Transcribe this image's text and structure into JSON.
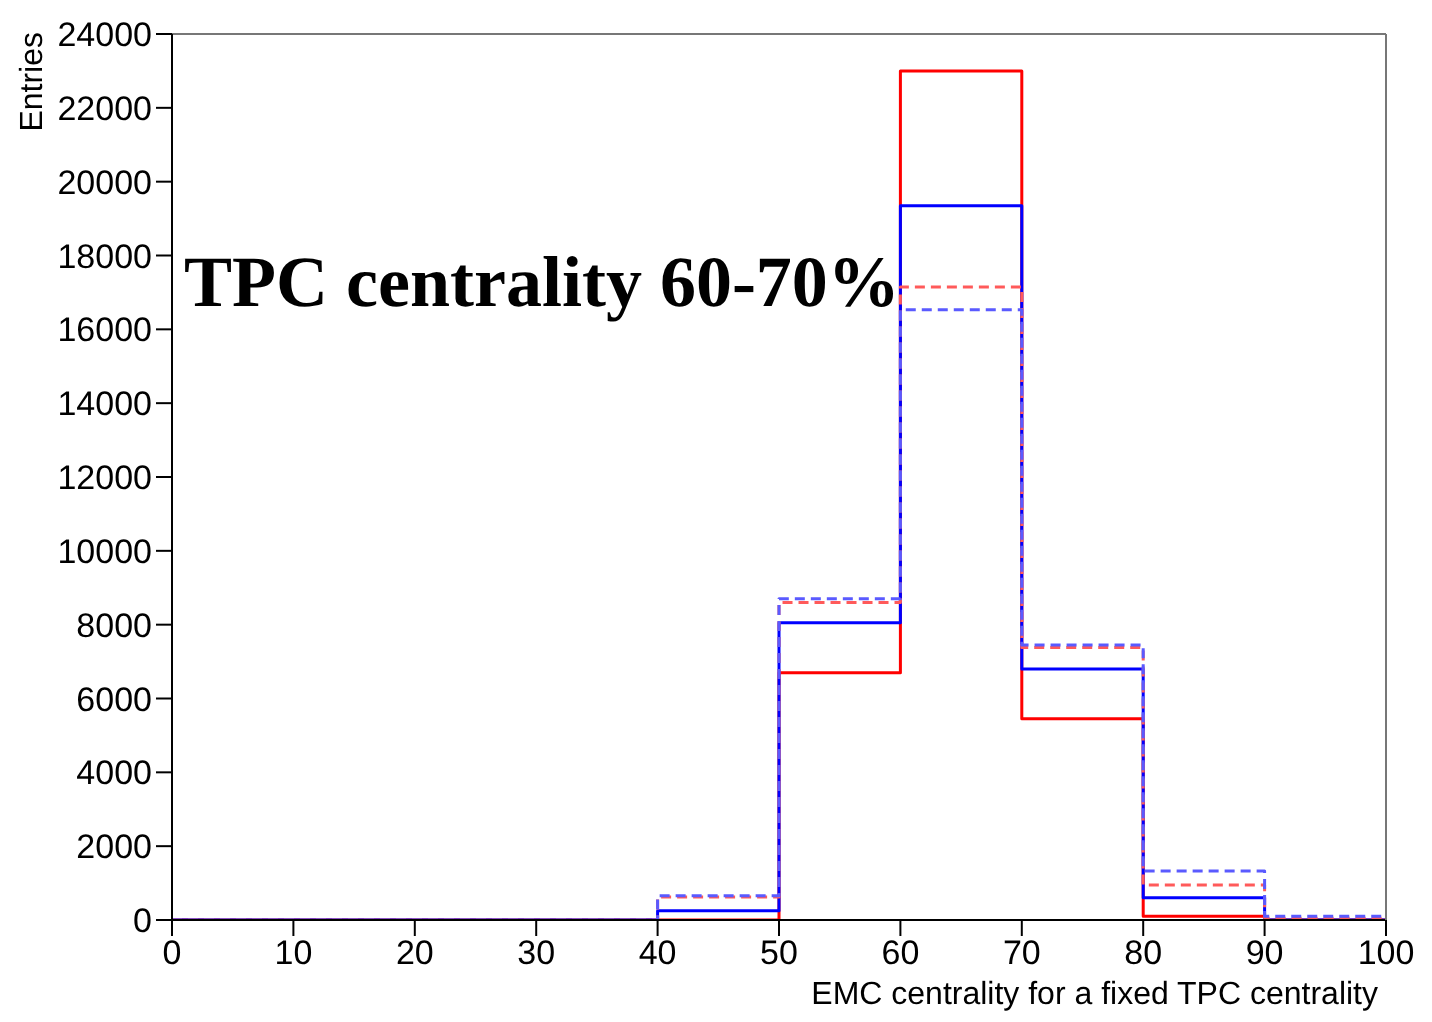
{
  "chart_data": {
    "type": "histogram",
    "xlabel": "EMC centrality for a fixed TPC centrality",
    "ylabel": "Entries",
    "annotations": [
      "TPC centrality 60-70%"
    ],
    "bins": [
      0,
      10,
      20,
      30,
      40,
      50,
      60,
      70,
      80,
      90,
      100
    ],
    "series": [
      {
        "color": "#ff0000",
        "line_style": "solid",
        "values": [
          0,
          0,
          0,
          0,
          0,
          6700,
          23000,
          5450,
          100,
          0
        ]
      },
      {
        "color": "#0000ff",
        "line_style": "solid",
        "values": [
          0,
          0,
          0,
          0,
          250,
          8050,
          19350,
          6800,
          600,
          0
        ]
      },
      {
        "color": "#ff5a5a",
        "line_style": "dashed",
        "values": [
          0,
          0,
          0,
          0,
          620,
          8600,
          17150,
          7380,
          950,
          50
        ]
      },
      {
        "color": "#5a5aff",
        "line_style": "dashed",
        "values": [
          0,
          0,
          0,
          0,
          660,
          8700,
          16530,
          7450,
          1330,
          100
        ]
      }
    ],
    "xlim": [
      0,
      100
    ],
    "xticks": [
      0,
      10,
      20,
      30,
      40,
      50,
      60,
      70,
      80,
      90,
      100
    ],
    "ylim": [
      0,
      24000
    ],
    "yticks": [
      0,
      2000,
      4000,
      6000,
      8000,
      10000,
      12000,
      14000,
      16000,
      18000,
      20000,
      22000,
      24000
    ],
    "grid": false
  }
}
